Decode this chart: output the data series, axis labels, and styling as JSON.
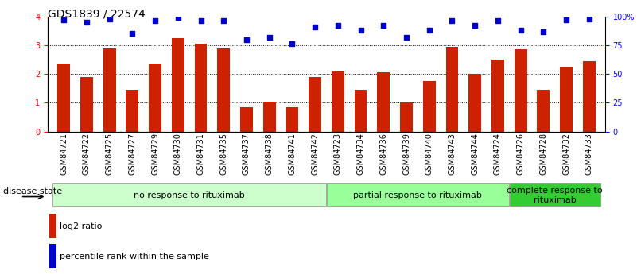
{
  "title": "GDS1839 / 22574",
  "categories": [
    "GSM84721",
    "GSM84722",
    "GSM84725",
    "GSM84727",
    "GSM84729",
    "GSM84730",
    "GSM84731",
    "GSM84735",
    "GSM84737",
    "GSM84738",
    "GSM84741",
    "GSM84742",
    "GSM84723",
    "GSM84734",
    "GSM84736",
    "GSM84739",
    "GSM84740",
    "GSM84743",
    "GSM84744",
    "GSM84724",
    "GSM84726",
    "GSM84728",
    "GSM84732",
    "GSM84733"
  ],
  "log2_values": [
    2.35,
    1.9,
    2.9,
    1.45,
    2.35,
    3.25,
    3.05,
    2.9,
    0.85,
    1.05,
    0.85,
    1.9,
    2.1,
    1.45,
    2.05,
    1.0,
    1.75,
    2.95,
    2.0,
    2.5,
    2.85,
    1.45,
    2.25,
    2.45
  ],
  "percentile_values": [
    97,
    95,
    98,
    85,
    96,
    99,
    96,
    96,
    80,
    82,
    76,
    91,
    92,
    88,
    92,
    82,
    88,
    96,
    92,
    96,
    88,
    87,
    97,
    98
  ],
  "bar_color": "#cc2200",
  "dot_color": "#0000cc",
  "bg_color": "#ffffff",
  "ylim_left": [
    0,
    4
  ],
  "ylim_right": [
    0,
    100
  ],
  "yticks_left": [
    0,
    1,
    2,
    3,
    4
  ],
  "yticks_right": [
    0,
    25,
    50,
    75,
    100
  ],
  "ytick_labels_right": [
    "0",
    "25",
    "50",
    "75",
    "100%"
  ],
  "group_labels": [
    "no response to rituximab",
    "partial response to rituximab",
    "complete response to\nrituximab"
  ],
  "group_colors": [
    "#ccffcc",
    "#99ff99",
    "#33cc33"
  ],
  "g1_range": [
    0,
    11
  ],
  "g2_range": [
    12,
    19
  ],
  "g3_range": [
    20,
    23
  ],
  "disease_state_label": "disease state",
  "legend_bar_label": "log2 ratio",
  "legend_dot_label": "percentile rank within the sample",
  "title_fontsize": 10,
  "tick_fontsize": 7,
  "group_label_fontsize": 8
}
